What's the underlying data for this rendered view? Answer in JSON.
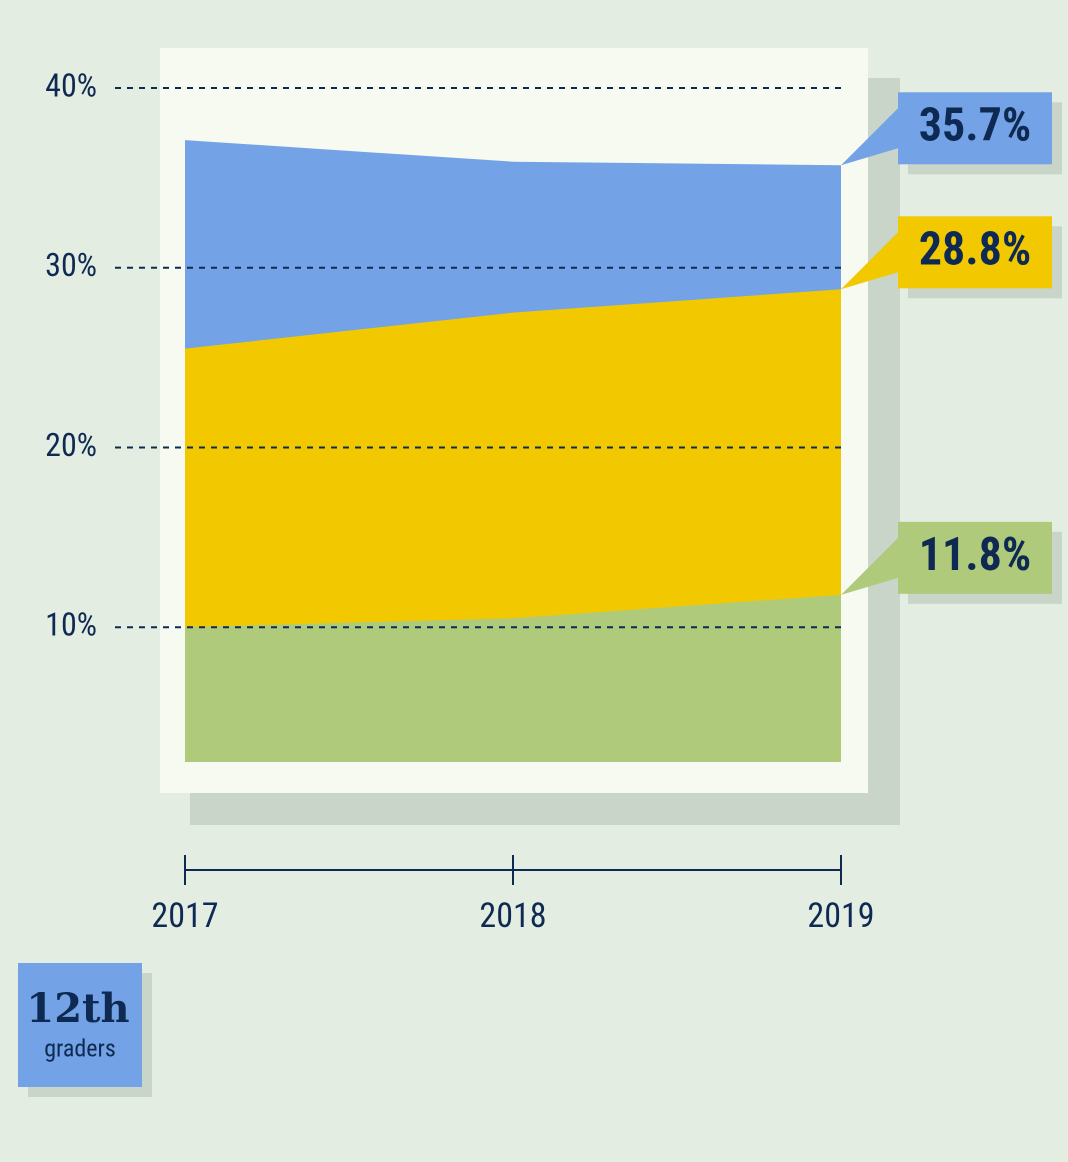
{
  "chart_data": {
    "type": "area",
    "categories": [
      "2017",
      "2018",
      "2019"
    ],
    "series": [
      {
        "color": "#73a3e6",
        "values": [
          37.1,
          35.9,
          35.7
        ],
        "value_labels": [
          null,
          null,
          "35.7%"
        ]
      },
      {
        "color": "#f2c900",
        "values": [
          25.5,
          27.5,
          28.8
        ],
        "value_labels": [
          null,
          null,
          "28.8%"
        ]
      },
      {
        "color": "#b0ca7c",
        "values": [
          10.0,
          10.5,
          11.8
        ],
        "value_labels": [
          null,
          null,
          "11.8%"
        ]
      }
    ],
    "ylim": [
      2.5,
      40
    ],
    "yticks": [
      {
        "value": 10,
        "label": "10%"
      },
      {
        "value": 20,
        "label": "20%"
      },
      {
        "value": 30,
        "label": "30%"
      },
      {
        "value": 40,
        "label": "40%"
      }
    ],
    "grid": true,
    "badge": {
      "title": "12th",
      "subtitle": "graders"
    }
  }
}
